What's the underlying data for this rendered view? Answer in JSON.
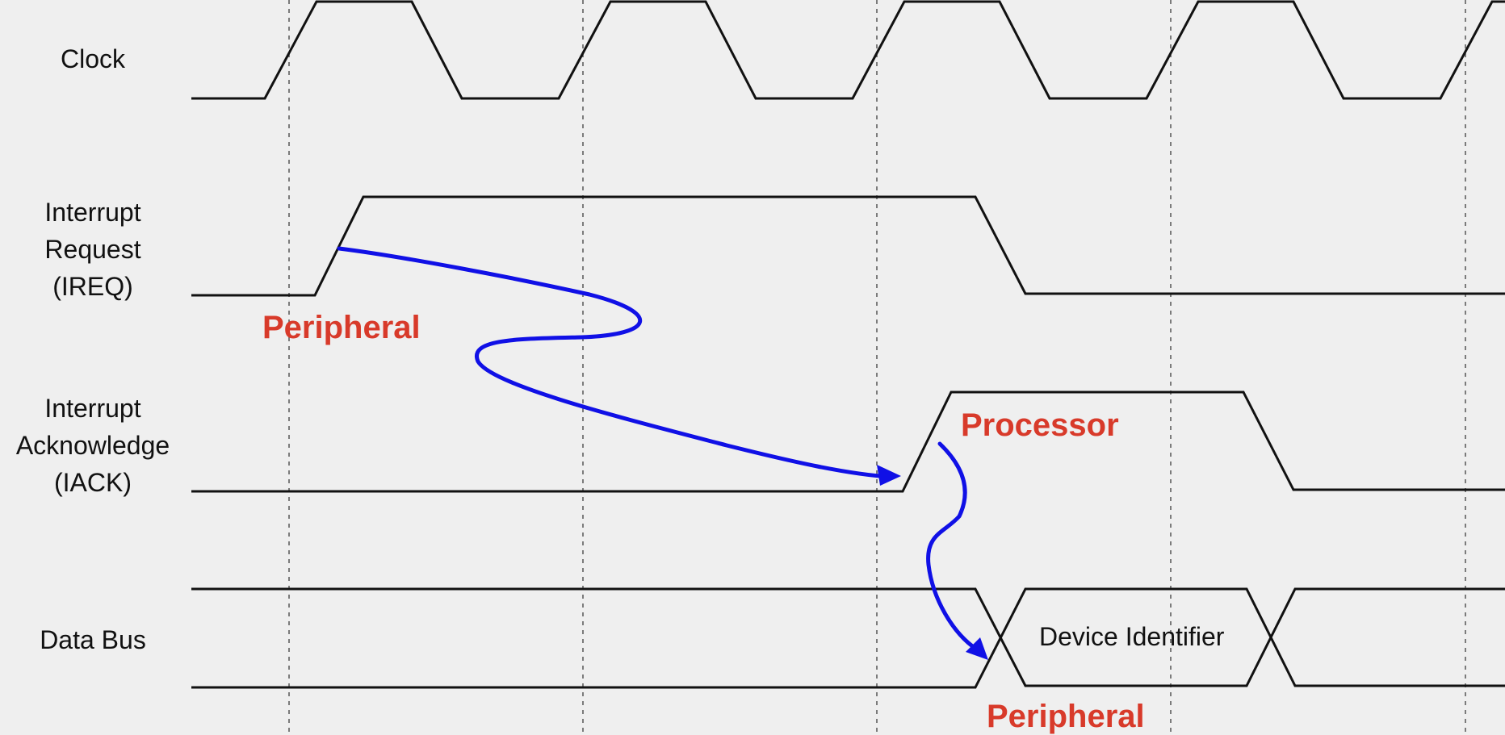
{
  "signals": {
    "clock": "Clock",
    "ireq": "Interrupt\nRequest\n(IREQ)",
    "iack": "Interrupt\nAcknowledge\n(IACK)",
    "data_bus": "Data Bus"
  },
  "bus_value": "Device Identifier",
  "annotations": {
    "peripheral_1": "Peripheral",
    "processor": "Processor",
    "peripheral_2": "Peripheral"
  },
  "colors": {
    "waveform": "#111111",
    "grid": "#555555",
    "arrow": "#1010e6",
    "annotation": "#d83a2a",
    "background": "#efefef"
  }
}
